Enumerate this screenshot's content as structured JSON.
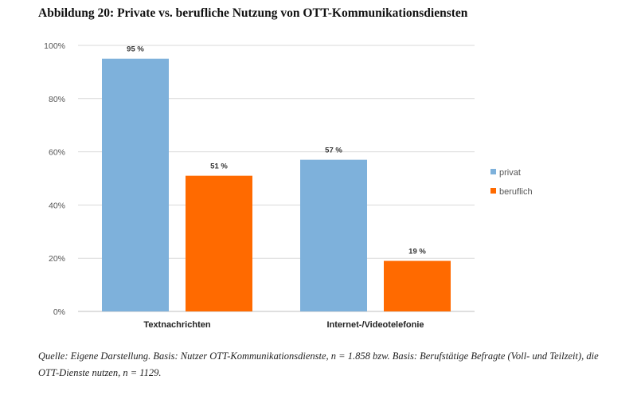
{
  "figure_title": "Abbildung 20: Private vs. berufliche Nutzung von OTT-Kommunikationsdiensten",
  "source_note": "Quelle: Eigene Darstellung. Basis: Nutzer OTT-Kommunikationsdienste, n = 1.858 bzw. Basis: Berufstätige Befragte (Voll- und Teilzeit), die OTT-Dienste nutzen, n = 1129.",
  "chart_data": {
    "type": "bar",
    "categories": [
      "Textnachrichten",
      "Internet-/Videotelefonie"
    ],
    "series": [
      {
        "name": "privat",
        "values": [
          95,
          57
        ],
        "labels": [
          "95 %",
          "57 %"
        ],
        "color": "#7eb1db"
      },
      {
        "name": "beruflich",
        "values": [
          51,
          19
        ],
        "labels": [
          "51 %",
          "19 %"
        ],
        "color": "#ff6a00"
      }
    ],
    "ylim": [
      0,
      100
    ],
    "yticks": [
      0,
      20,
      40,
      60,
      80,
      100
    ],
    "ytick_labels": [
      "0%",
      "20%",
      "40%",
      "60%",
      "80%",
      "100%"
    ],
    "grid": true,
    "legend_position": "right"
  }
}
